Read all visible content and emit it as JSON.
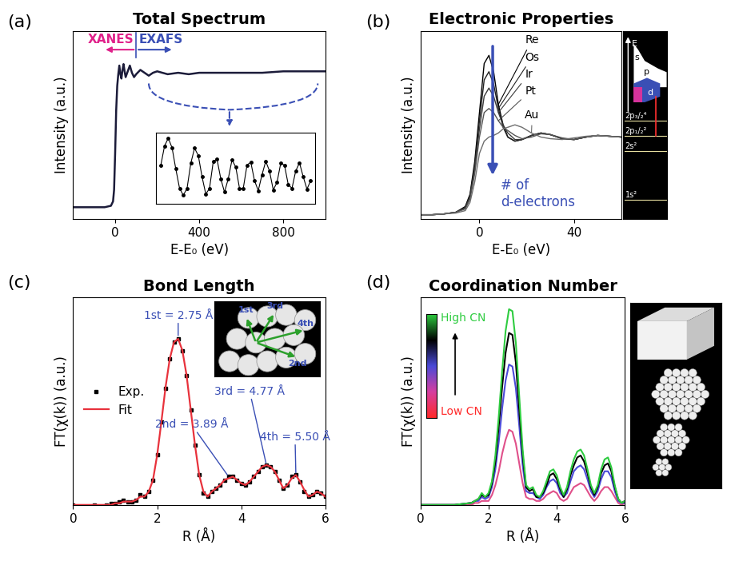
{
  "chart_data": [
    {
      "panel_label": "(a)",
      "type": "line",
      "title": "Total Spectrum",
      "x_label": "E-E₀ (eV)",
      "y_label": "Intensity (a.u.)",
      "xlim": [
        -200,
        1000
      ],
      "ylim": [
        0,
        1.3
      ],
      "xticks": [
        0,
        400,
        800
      ],
      "tick_labels": "x",
      "x": [
        -200,
        -100,
        -50,
        -20,
        -10,
        -5,
        0,
        5,
        10,
        15,
        20,
        25,
        30,
        35,
        40,
        45,
        50,
        60,
        70,
        80,
        90,
        100,
        120,
        140,
        160,
        180,
        200,
        250,
        300,
        350,
        400,
        500,
        600,
        700,
        800,
        900,
        1000
      ],
      "series": [
        {
          "color": "#1c1c3a",
          "values": [
            0.08,
            0.08,
            0.08,
            0.09,
            0.12,
            0.2,
            0.45,
            0.75,
            0.92,
            1.0,
            1.06,
            1.0,
            0.97,
            1.03,
            1.07,
            1.02,
            0.98,
            1.02,
            1.06,
            1.01,
            0.98,
            1.0,
            1.03,
            1.01,
            0.99,
            1.01,
            1.02,
            1.0,
            1.01,
            1.0,
            1.01,
            1.01,
            1.01,
            1.01,
            1.02,
            1.02,
            1.02
          ]
        }
      ],
      "annotations": [
        {
          "text": "XANES",
          "color": "#e0218a"
        },
        {
          "text": "EXAFS",
          "color": "#3a4fb5"
        }
      ],
      "boundary": 100,
      "inset": {
        "type": "line",
        "marker": "o",
        "color": "#000000",
        "xlim": [
          -0.3,
          10.3
        ],
        "ylim": [
          -0.7,
          1.15
        ],
        "x": [
          0,
          0.25,
          0.5,
          0.75,
          1,
          1.25,
          1.5,
          1.75,
          2,
          2.25,
          2.5,
          2.75,
          3,
          3.25,
          3.5,
          3.75,
          4,
          4.25,
          4.5,
          4.75,
          5,
          5.25,
          5.5,
          5.75,
          6,
          6.25,
          6.5,
          6.75,
          7,
          7.25,
          7.5,
          7.75,
          8,
          8.25,
          8.5,
          8.75,
          9,
          9.25,
          9.5,
          9.75,
          10
        ],
        "values": [
          0.3,
          0.8,
          1.0,
          0.75,
          0.2,
          -0.3,
          -0.48,
          -0.3,
          0.35,
          0.74,
          0.55,
          0.0,
          -0.45,
          -0.3,
          0.4,
          0.45,
          -0.05,
          -0.4,
          -0.05,
          0.44,
          0.25,
          -0.3,
          -0.3,
          0.3,
          0.38,
          -0.1,
          -0.36,
          0.05,
          0.4,
          0.15,
          -0.34,
          -0.15,
          0.35,
          0.3,
          -0.2,
          -0.3,
          0.15,
          0.36,
          0.0,
          -0.32,
          -0.1
        ]
      }
    },
    {
      "panel_label": "(b)",
      "type": "line",
      "title": "Electronic Properties",
      "x_label": "E-E₀ (eV)",
      "y_label": "Intensity (a.u.)",
      "xlim": [
        -25,
        60
      ],
      "ylim": [
        0,
        2.3
      ],
      "xticks": [
        0,
        40
      ],
      "tick_labels": "x",
      "x": [
        -25,
        -20,
        -15,
        -10,
        -6,
        -4,
        -2,
        0,
        2,
        4,
        6,
        8,
        10,
        12,
        15,
        18,
        22,
        26,
        30,
        35,
        40,
        45,
        50,
        55,
        60
      ],
      "series": [
        {
          "name": "Re",
          "color": "#000000",
          "values": [
            0.05,
            0.05,
            0.06,
            0.08,
            0.15,
            0.3,
            0.7,
            1.3,
            1.9,
            2.0,
            1.8,
            1.4,
            1.15,
            1.0,
            0.95,
            0.97,
            1.02,
            1.05,
            1.03,
            0.98,
            0.97,
            1.0,
            1.02,
            1.01,
            1.0
          ]
        },
        {
          "name": "Os",
          "color": "#222222",
          "values": [
            0.05,
            0.05,
            0.06,
            0.08,
            0.14,
            0.28,
            0.65,
            1.2,
            1.7,
            1.8,
            1.65,
            1.35,
            1.12,
            1.0,
            0.95,
            0.97,
            1.02,
            1.05,
            1.03,
            0.98,
            0.97,
            1.0,
            1.02,
            1.01,
            1.0
          ]
        },
        {
          "name": "Ir",
          "color": "#3a3a3a",
          "values": [
            0.05,
            0.05,
            0.06,
            0.08,
            0.13,
            0.26,
            0.6,
            1.1,
            1.5,
            1.6,
            1.5,
            1.3,
            1.15,
            1.05,
            0.97,
            0.97,
            1.02,
            1.05,
            1.03,
            0.98,
            0.97,
            1.0,
            1.02,
            1.01,
            1.0
          ]
        },
        {
          "name": "Pt",
          "color": "#555555",
          "values": [
            0.05,
            0.05,
            0.06,
            0.08,
            0.12,
            0.24,
            0.55,
            1.0,
            1.3,
            1.35,
            1.3,
            1.2,
            1.12,
            1.08,
            1.02,
            0.98,
            1.0,
            1.04,
            1.03,
            0.99,
            0.97,
            1.0,
            1.02,
            1.01,
            1.0
          ]
        },
        {
          "name": "Au",
          "color": "#6e6e6e",
          "values": [
            0.05,
            0.05,
            0.06,
            0.07,
            0.1,
            0.2,
            0.45,
            0.8,
            0.95,
            1.0,
            1.02,
            1.05,
            1.1,
            1.12,
            1.15,
            1.12,
            1.05,
            1.0,
            0.98,
            0.97,
            0.99,
            1.01,
            1.02,
            1.01,
            1.0
          ]
        }
      ],
      "annotation": {
        "text": "# of\nd-electrons",
        "color": "#3a4fb5"
      },
      "energy_diagram": {
        "axis_label": "E",
        "bands": [
          "s",
          "p",
          "d"
        ],
        "levels": [
          "2p₃/₂⁴",
          "2p₁/₂²",
          "2s²",
          "1s²"
        ]
      }
    },
    {
      "panel_label": "(c)",
      "type": "line",
      "title": "Bond Length",
      "x_label": "R (Å)",
      "y_label": "FT(χ(k)) (a.u.)",
      "xlim": [
        0,
        6
      ],
      "ylim": [
        0,
        1.25
      ],
      "xticks": [
        0,
        2,
        4,
        6
      ],
      "tick_labels": "x",
      "legend": "center left",
      "x": [
        0.0,
        0.5,
        0.8,
        0.9,
        1.0,
        1.1,
        1.2,
        1.3,
        1.4,
        1.5,
        1.6,
        1.7,
        1.8,
        1.9,
        2.0,
        2.1,
        2.2,
        2.3,
        2.4,
        2.5,
        2.6,
        2.7,
        2.8,
        2.9,
        3.0,
        3.1,
        3.2,
        3.3,
        3.4,
        3.5,
        3.6,
        3.7,
        3.8,
        3.9,
        4.0,
        4.1,
        4.2,
        4.3,
        4.4,
        4.5,
        4.6,
        4.7,
        4.8,
        4.9,
        5.0,
        5.1,
        5.2,
        5.3,
        5.4,
        5.5,
        5.6,
        5.7,
        5.8,
        5.9,
        6.0
      ],
      "series": [
        {
          "name": "Exp.",
          "type": "scatter",
          "marker": "s",
          "color": "#000000",
          "values": [
            0.0,
            0.0,
            0.0,
            0.01,
            0.01,
            0.02,
            0.03,
            0.02,
            0.02,
            0.03,
            0.06,
            0.05,
            0.08,
            0.15,
            0.3,
            0.5,
            0.7,
            0.88,
            0.98,
            1.0,
            0.93,
            0.78,
            0.57,
            0.36,
            0.18,
            0.07,
            0.05,
            0.08,
            0.1,
            0.12,
            0.15,
            0.17,
            0.17,
            0.15,
            0.13,
            0.12,
            0.14,
            0.17,
            0.2,
            0.23,
            0.24,
            0.23,
            0.2,
            0.15,
            0.1,
            0.12,
            0.17,
            0.18,
            0.14,
            0.08,
            0.05,
            0.06,
            0.08,
            0.07,
            0.05
          ]
        },
        {
          "name": "Fit",
          "type": "line",
          "line_style": "solid",
          "color": "#e8323c",
          "values": [
            0.0,
            0.0,
            0.0,
            0.0,
            0.01,
            0.01,
            0.02,
            0.02,
            0.02,
            0.03,
            0.05,
            0.05,
            0.08,
            0.15,
            0.3,
            0.5,
            0.71,
            0.88,
            0.98,
            1.0,
            0.93,
            0.78,
            0.57,
            0.36,
            0.18,
            0.08,
            0.05,
            0.08,
            0.1,
            0.12,
            0.15,
            0.16,
            0.17,
            0.15,
            0.13,
            0.12,
            0.14,
            0.17,
            0.2,
            0.23,
            0.24,
            0.23,
            0.2,
            0.15,
            0.1,
            0.12,
            0.16,
            0.18,
            0.14,
            0.09,
            0.05,
            0.06,
            0.08,
            0.07,
            0.05
          ]
        }
      ],
      "annotations": [
        "1st = 2.75 Å",
        "2nd = 3.89 Å",
        "3rd = 4.77 Å",
        "4th = 5.50 Å"
      ],
      "inset_labels": [
        "1st",
        "2nd",
        "3rd",
        "4th"
      ]
    },
    {
      "panel_label": "(d)",
      "type": "line",
      "title": "Coordination Number",
      "x_label": "R (Å)",
      "y_label": "FT(χ(k)) (a.u.)",
      "xlim": [
        0,
        6
      ],
      "ylim": [
        0,
        1.05
      ],
      "xticks": [
        0,
        2,
        4,
        6
      ],
      "tick_labels": "x",
      "x": [
        0.0,
        1.0,
        1.5,
        1.6,
        1.7,
        1.8,
        1.9,
        2.0,
        2.1,
        2.2,
        2.3,
        2.4,
        2.5,
        2.6,
        2.7,
        2.8,
        2.9,
        3.0,
        3.1,
        3.2,
        3.3,
        3.4,
        3.5,
        3.6,
        3.7,
        3.8,
        3.9,
        4.0,
        4.1,
        4.2,
        4.3,
        4.4,
        4.5,
        4.6,
        4.7,
        4.8,
        4.9,
        5.0,
        5.1,
        5.2,
        5.3,
        5.4,
        5.5,
        5.6,
        5.7,
        5.8,
        5.9,
        6.0
      ],
      "series": [
        {
          "color": "#e0508a",
          "values": [
            0.0,
            0.0,
            0.0,
            0.01,
            0.01,
            0.02,
            0.02,
            0.02,
            0.05,
            0.1,
            0.17,
            0.26,
            0.33,
            0.38,
            0.37,
            0.31,
            0.21,
            0.11,
            0.04,
            0.03,
            0.03,
            0.02,
            0.02,
            0.03,
            0.05,
            0.06,
            0.07,
            0.06,
            0.03,
            0.02,
            0.03,
            0.06,
            0.09,
            0.1,
            0.11,
            0.1,
            0.07,
            0.04,
            0.02,
            0.04,
            0.07,
            0.09,
            0.09,
            0.07,
            0.04,
            0.01,
            0.0,
            0.01
          ]
        },
        {
          "color": "#4a4ad8",
          "values": [
            0.0,
            0.0,
            0.01,
            0.02,
            0.02,
            0.04,
            0.03,
            0.04,
            0.09,
            0.18,
            0.32,
            0.49,
            0.63,
            0.71,
            0.7,
            0.59,
            0.4,
            0.2,
            0.07,
            0.06,
            0.06,
            0.04,
            0.03,
            0.05,
            0.09,
            0.12,
            0.13,
            0.11,
            0.06,
            0.04,
            0.06,
            0.12,
            0.17,
            0.19,
            0.2,
            0.18,
            0.13,
            0.07,
            0.04,
            0.07,
            0.13,
            0.17,
            0.17,
            0.14,
            0.07,
            0.02,
            0.01,
            0.01
          ]
        },
        {
          "color": "#000000",
          "values": [
            0.0,
            0.0,
            0.01,
            0.02,
            0.03,
            0.05,
            0.04,
            0.05,
            0.11,
            0.22,
            0.4,
            0.6,
            0.77,
            0.87,
            0.86,
            0.72,
            0.48,
            0.25,
            0.09,
            0.07,
            0.08,
            0.04,
            0.04,
            0.06,
            0.1,
            0.15,
            0.16,
            0.13,
            0.08,
            0.04,
            0.08,
            0.15,
            0.2,
            0.24,
            0.25,
            0.22,
            0.16,
            0.09,
            0.05,
            0.09,
            0.16,
            0.2,
            0.21,
            0.17,
            0.09,
            0.03,
            0.01,
            0.02
          ]
        },
        {
          "color": "#2ecc40",
          "values": [
            0.0,
            0.0,
            0.01,
            0.02,
            0.03,
            0.06,
            0.04,
            0.06,
            0.12,
            0.25,
            0.45,
            0.68,
            0.88,
            0.99,
            0.98,
            0.82,
            0.55,
            0.28,
            0.1,
            0.08,
            0.09,
            0.05,
            0.04,
            0.07,
            0.12,
            0.17,
            0.18,
            0.15,
            0.09,
            0.05,
            0.09,
            0.17,
            0.23,
            0.27,
            0.28,
            0.25,
            0.18,
            0.1,
            0.06,
            0.1,
            0.18,
            0.23,
            0.24,
            0.19,
            0.1,
            0.03,
            0.01,
            0.02
          ]
        }
      ],
      "colorbar": {
        "colors": [
          "#ff2a2a",
          "#d63fa0",
          "#4a4ad8",
          "#000000",
          "#2ecc40"
        ],
        "low_label": "Low CN",
        "high_label": "High CN"
      }
    }
  ]
}
